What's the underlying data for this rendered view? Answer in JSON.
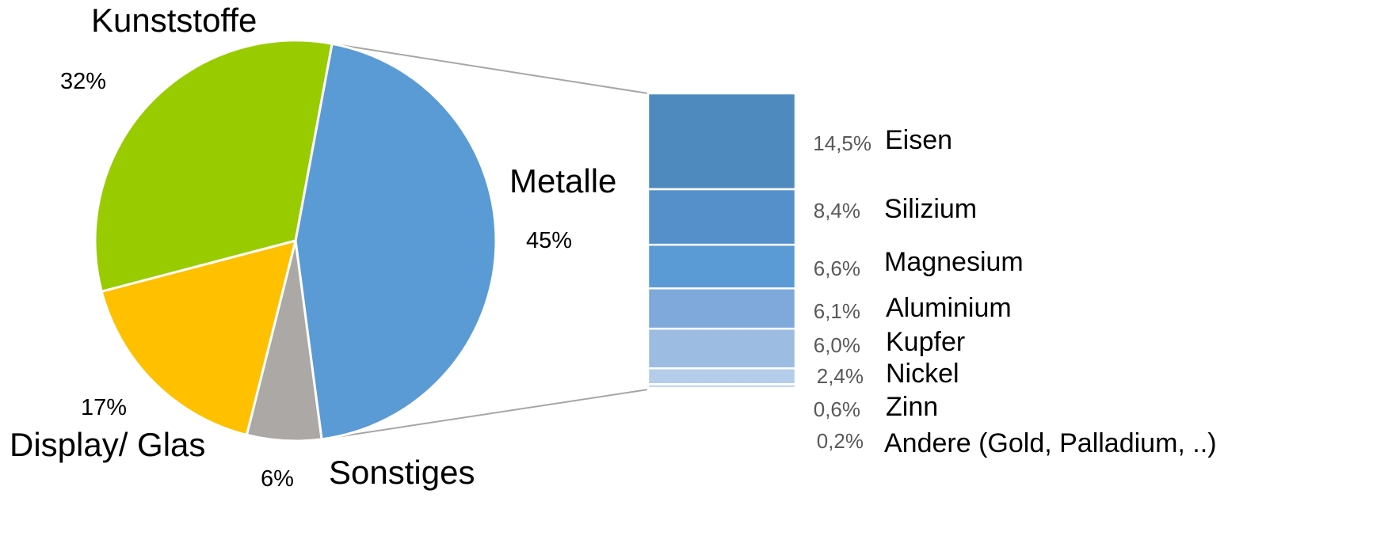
{
  "chart_data": [
    {
      "type": "pie",
      "slices": [
        {
          "label": "Metalle",
          "value": 45,
          "value_label": "45%",
          "color": "#5B9BD5"
        },
        {
          "label": "Sonstiges",
          "value": 6,
          "value_label": "6%",
          "color": "#ABA8A6"
        },
        {
          "label": "Display/ Glas",
          "value": 17,
          "value_label": "17%",
          "color": "#FFC000"
        },
        {
          "label": "Kunststoffe",
          "value": 32,
          "value_label": "32%",
          "color": "#99CC00"
        }
      ]
    },
    {
      "type": "bar",
      "stacked": true,
      "breakdown_of": "Metalle",
      "series": [
        {
          "name": "Eisen",
          "value": 14.5,
          "value_label": "14,5%",
          "color": "#4E8ABE"
        },
        {
          "name": "Silizium",
          "value": 8.4,
          "value_label": "8,4%",
          "color": "#5690CB"
        },
        {
          "name": "Magnesium",
          "value": 6.6,
          "value_label": "6,6%",
          "color": "#5B9BD5"
        },
        {
          "name": "Aluminium",
          "value": 6.1,
          "value_label": "6,1%",
          "color": "#7EA9DA"
        },
        {
          "name": "Kupfer",
          "value": 6.0,
          "value_label": "6,0%",
          "color": "#9CBCE2"
        },
        {
          "name": "Nickel",
          "value": 2.4,
          "value_label": "2,4%",
          "color": "#B4CDEA"
        },
        {
          "name": "Zinn",
          "value": 0.6,
          "value_label": "0,6%",
          "color": "#C6D9EF"
        },
        {
          "name": "Andere (Gold, Palladium, ..)",
          "value": 0.2,
          "value_label": "0,2%",
          "color": "#D7E4F3"
        }
      ]
    }
  ]
}
